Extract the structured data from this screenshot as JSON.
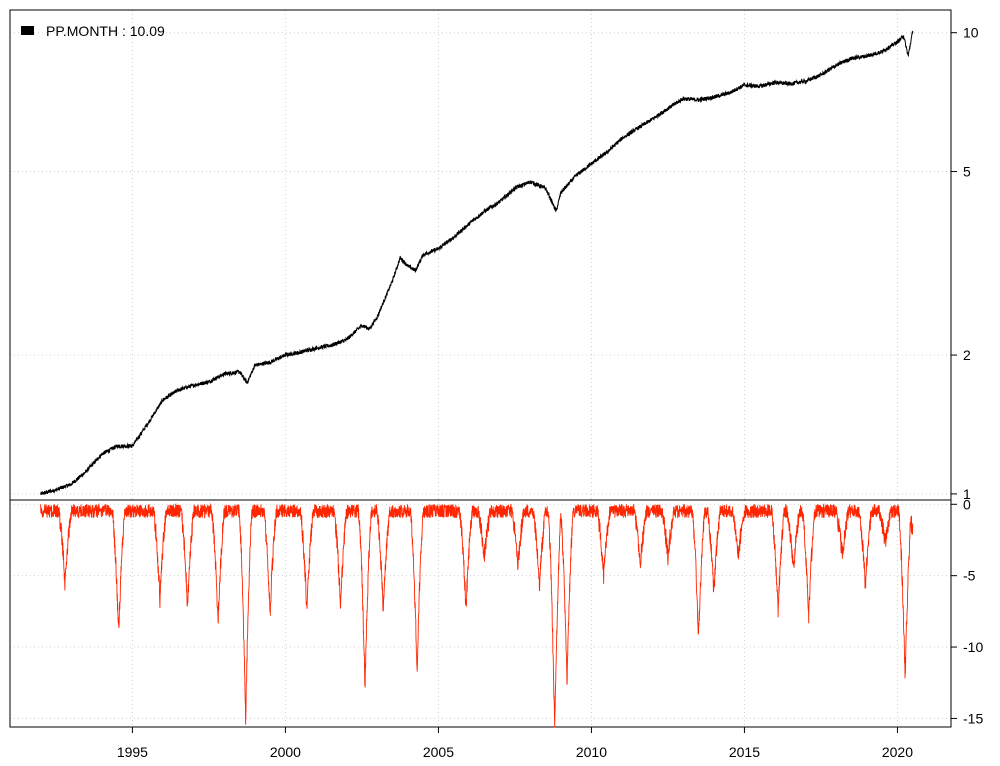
{
  "chart_data": [
    {
      "type": "line",
      "panel": "top",
      "y_scale": "log",
      "ylim": [
        0.97,
        11.2
      ],
      "xlim": [
        1991.0,
        2021.75
      ],
      "y_ticks": [
        1,
        2,
        5,
        10
      ],
      "y_tick_labels": [
        "1",
        "2",
        "5",
        "10"
      ],
      "x_ticks": [
        1995,
        2000,
        2005,
        2010,
        2015,
        2020
      ],
      "x_tick_labels": [
        "1995",
        "2000",
        "2005",
        "2010",
        "2015",
        "2020"
      ],
      "grid": true,
      "legend": {
        "label": "PP.MONTH : 10.09",
        "color": "#000000",
        "placement": "top-left"
      },
      "series": [
        {
          "name": "PP.MONTH",
          "color": "#000000",
          "x": [
            1992.0,
            1992.5,
            1993.0,
            1993.5,
            1994.0,
            1994.5,
            1995.0,
            1995.5,
            1996.0,
            1996.5,
            1997.0,
            1997.5,
            1998.0,
            1998.5,
            1998.75,
            1999.0,
            1999.5,
            2000.0,
            2000.5,
            2001.0,
            2001.5,
            2002.0,
            2002.5,
            2002.75,
            2003.0,
            2003.5,
            2003.75,
            2004.0,
            2004.25,
            2004.5,
            2005.0,
            2005.5,
            2006.0,
            2006.5,
            2007.0,
            2007.5,
            2008.0,
            2008.5,
            2008.85,
            2009.0,
            2009.5,
            2010.0,
            2010.5,
            2011.0,
            2011.5,
            2012.0,
            2012.5,
            2013.0,
            2013.5,
            2014.0,
            2014.5,
            2015.0,
            2015.5,
            2016.0,
            2016.5,
            2017.0,
            2017.5,
            2018.0,
            2018.5,
            2019.0,
            2019.5,
            2020.0,
            2020.2,
            2020.35,
            2020.5
          ],
          "y": [
            1.0,
            1.02,
            1.05,
            1.12,
            1.22,
            1.27,
            1.27,
            1.42,
            1.6,
            1.68,
            1.72,
            1.75,
            1.82,
            1.84,
            1.74,
            1.9,
            1.93,
            2.0,
            2.03,
            2.07,
            2.1,
            2.16,
            2.32,
            2.28,
            2.42,
            2.9,
            3.25,
            3.12,
            3.05,
            3.3,
            3.4,
            3.6,
            3.85,
            4.1,
            4.3,
            4.6,
            4.75,
            4.6,
            4.1,
            4.5,
            4.9,
            5.2,
            5.5,
            5.9,
            6.2,
            6.5,
            6.85,
            7.2,
            7.15,
            7.25,
            7.4,
            7.7,
            7.65,
            7.8,
            7.75,
            7.85,
            8.1,
            8.5,
            8.8,
            8.9,
            9.1,
            9.55,
            9.85,
            8.9,
            10.09
          ]
        }
      ]
    },
    {
      "type": "area",
      "panel": "bottom",
      "ylim": [
        -15.6,
        0.3
      ],
      "xlim": [
        1991.0,
        2021.75
      ],
      "y_ticks": [
        0,
        -5,
        -10,
        -15
      ],
      "y_tick_labels": [
        "0",
        "-5",
        "-10",
        "-15"
      ],
      "x_ticks": [
        1995,
        2000,
        2005,
        2010,
        2015,
        2020
      ],
      "x_tick_labels": [
        "1995",
        "2000",
        "2005",
        "2010",
        "2015",
        "2020"
      ],
      "grid": true,
      "series": [
        {
          "color": "#ff2500",
          "troughs": [
            {
              "x": 1992.8,
              "y": -5.0
            },
            {
              "x": 1994.55,
              "y": -8.5
            },
            {
              "x": 1995.9,
              "y": -6.0
            },
            {
              "x": 1996.8,
              "y": -6.5
            },
            {
              "x": 1997.8,
              "y": -7.5
            },
            {
              "x": 1998.7,
              "y": -14.5
            },
            {
              "x": 1999.5,
              "y": -7.0
            },
            {
              "x": 2000.7,
              "y": -7.0
            },
            {
              "x": 2001.8,
              "y": -6.5
            },
            {
              "x": 2002.6,
              "y": -12.2
            },
            {
              "x": 2003.2,
              "y": -7.0
            },
            {
              "x": 2004.3,
              "y": -11.0
            },
            {
              "x": 2005.9,
              "y": -6.8
            },
            {
              "x": 2006.5,
              "y": -3.0
            },
            {
              "x": 2007.6,
              "y": -3.5
            },
            {
              "x": 2008.3,
              "y": -5.0
            },
            {
              "x": 2008.8,
              "y": -15.3
            },
            {
              "x": 2009.2,
              "y": -12.0
            },
            {
              "x": 2010.4,
              "y": -4.5
            },
            {
              "x": 2011.6,
              "y": -3.5
            },
            {
              "x": 2012.5,
              "y": -3.0
            },
            {
              "x": 2013.5,
              "y": -8.7
            },
            {
              "x": 2014.0,
              "y": -5.5
            },
            {
              "x": 2014.8,
              "y": -3.0
            },
            {
              "x": 2016.1,
              "y": -6.8
            },
            {
              "x": 2016.6,
              "y": -4.0
            },
            {
              "x": 2017.1,
              "y": -7.2
            },
            {
              "x": 2018.2,
              "y": -3.0
            },
            {
              "x": 2018.95,
              "y": -5.0
            },
            {
              "x": 2019.6,
              "y": -2.0
            },
            {
              "x": 2020.25,
              "y": -11.4
            },
            {
              "x": 2020.5,
              "y": -1.0
            }
          ]
        }
      ]
    }
  ]
}
